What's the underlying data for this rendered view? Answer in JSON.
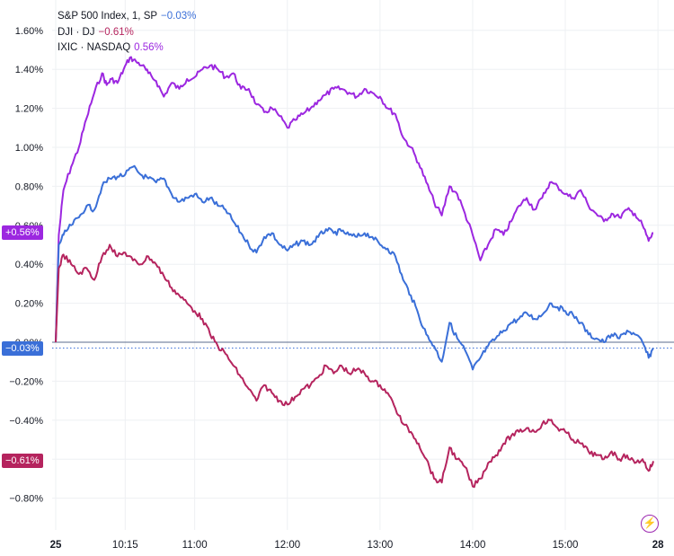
{
  "legend": {
    "sp": {
      "label": "S&P 500 Index, 1, SP",
      "value": "−0.03%"
    },
    "dj": {
      "label": "DJI · DJ",
      "value": "−0.61%"
    },
    "ixic": {
      "label": "IXIC · NASDAQ",
      "value": "0.56%"
    }
  },
  "badges": {
    "ixic": "+0.56%",
    "sp": "−0.03%",
    "dj": "−0.61%"
  },
  "colors": {
    "sp": "#3a6fd8",
    "dj": "#b5245e",
    "ixic": "#9c27e0",
    "grid": "#eef0f3",
    "text": "#131722"
  },
  "icons": {
    "logo": "lightning-icon"
  },
  "chart_data": {
    "type": "line",
    "y_unit": "%",
    "ylim": [
      -0.9,
      1.65
    ],
    "xlim": [
      "09:30",
      "15:57"
    ],
    "y_ticks": [
      "1.60%",
      "1.40%",
      "1.20%",
      "1.00%",
      "0.80%",
      "0.60%",
      "0.40%",
      "0.20%",
      "0.00%",
      "−0.20%",
      "−0.40%",
      "−0.60%",
      "−0.80%"
    ],
    "y_tick_values": [
      1.6,
      1.4,
      1.2,
      1.0,
      0.8,
      0.6,
      0.4,
      0.2,
      0.0,
      -0.2,
      -0.4,
      -0.6,
      -0.8
    ],
    "x_ticks": [
      "25",
      "10:15",
      "11:00",
      "12:00",
      "13:00",
      "14:00",
      "15:00",
      "28"
    ],
    "x_tick_times": [
      "09:30",
      "10:15",
      "11:00",
      "12:00",
      "13:00",
      "14:00",
      "15:00",
      "16:00"
    ],
    "grid": true,
    "series": [
      {
        "key": "ixic",
        "name": "IXIC · NASDAQ",
        "last": 0.56,
        "points": [
          [
            "09:30",
            0.0
          ],
          [
            "09:32",
            0.55
          ],
          [
            "09:35",
            0.78
          ],
          [
            "09:40",
            0.9
          ],
          [
            "09:45",
            1.0
          ],
          [
            "09:50",
            1.15
          ],
          [
            "09:55",
            1.28
          ],
          [
            "10:00",
            1.38
          ],
          [
            "10:03",
            1.32
          ],
          [
            "10:06",
            1.35
          ],
          [
            "10:10",
            1.33
          ],
          [
            "10:14",
            1.4
          ],
          [
            "10:18",
            1.46
          ],
          [
            "10:22",
            1.44
          ],
          [
            "10:26",
            1.42
          ],
          [
            "10:30",
            1.38
          ],
          [
            "10:35",
            1.34
          ],
          [
            "10:40",
            1.26
          ],
          [
            "10:45",
            1.33
          ],
          [
            "10:50",
            1.3
          ],
          [
            "10:55",
            1.35
          ],
          [
            "11:00",
            1.36
          ],
          [
            "11:05",
            1.4
          ],
          [
            "11:10",
            1.42
          ],
          [
            "11:15",
            1.4
          ],
          [
            "11:20",
            1.36
          ],
          [
            "11:25",
            1.38
          ],
          [
            "11:30",
            1.3
          ],
          [
            "11:35",
            1.3
          ],
          [
            "11:40",
            1.22
          ],
          [
            "11:45",
            1.18
          ],
          [
            "11:50",
            1.2
          ],
          [
            "11:55",
            1.16
          ],
          [
            "12:00",
            1.1
          ],
          [
            "12:05",
            1.14
          ],
          [
            "12:10",
            1.17
          ],
          [
            "12:15",
            1.2
          ],
          [
            "12:20",
            1.24
          ],
          [
            "12:25",
            1.27
          ],
          [
            "12:30",
            1.3
          ],
          [
            "12:35",
            1.3
          ],
          [
            "12:40",
            1.28
          ],
          [
            "12:45",
            1.26
          ],
          [
            "12:50",
            1.3
          ],
          [
            "12:55",
            1.28
          ],
          [
            "13:00",
            1.26
          ],
          [
            "13:05",
            1.2
          ],
          [
            "13:10",
            1.17
          ],
          [
            "13:15",
            1.05
          ],
          [
            "13:20",
            1.0
          ],
          [
            "13:25",
            0.92
          ],
          [
            "13:30",
            0.82
          ],
          [
            "13:35",
            0.72
          ],
          [
            "13:40",
            0.65
          ],
          [
            "13:45",
            0.8
          ],
          [
            "13:50",
            0.76
          ],
          [
            "13:55",
            0.66
          ],
          [
            "14:00",
            0.55
          ],
          [
            "14:05",
            0.42
          ],
          [
            "14:10",
            0.5
          ],
          [
            "14:15",
            0.58
          ],
          [
            "14:20",
            0.55
          ],
          [
            "14:25",
            0.62
          ],
          [
            "14:30",
            0.7
          ],
          [
            "14:35",
            0.74
          ],
          [
            "14:40",
            0.68
          ],
          [
            "14:45",
            0.74
          ],
          [
            "14:50",
            0.82
          ],
          [
            "14:55",
            0.8
          ],
          [
            "15:00",
            0.76
          ],
          [
            "15:05",
            0.74
          ],
          [
            "15:10",
            0.78
          ],
          [
            "15:15",
            0.7
          ],
          [
            "15:20",
            0.66
          ],
          [
            "15:25",
            0.62
          ],
          [
            "15:30",
            0.66
          ],
          [
            "15:35",
            0.64
          ],
          [
            "15:40",
            0.68
          ],
          [
            "15:45",
            0.66
          ],
          [
            "15:50",
            0.6
          ],
          [
            "15:54",
            0.52
          ],
          [
            "15:57",
            0.56
          ]
        ]
      },
      {
        "key": "sp",
        "name": "S&P 500 Index, 1, SP",
        "last": -0.03,
        "points": [
          [
            "09:30",
            0.0
          ],
          [
            "09:32",
            0.5
          ],
          [
            "09:35",
            0.55
          ],
          [
            "09:40",
            0.6
          ],
          [
            "09:45",
            0.64
          ],
          [
            "09:50",
            0.7
          ],
          [
            "09:55",
            0.68
          ],
          [
            "10:00",
            0.8
          ],
          [
            "10:05",
            0.84
          ],
          [
            "10:10",
            0.85
          ],
          [
            "10:15",
            0.86
          ],
          [
            "10:20",
            0.9
          ],
          [
            "10:25",
            0.86
          ],
          [
            "10:30",
            0.84
          ],
          [
            "10:35",
            0.82
          ],
          [
            "10:40",
            0.84
          ],
          [
            "10:45",
            0.76
          ],
          [
            "10:50",
            0.72
          ],
          [
            "10:55",
            0.74
          ],
          [
            "11:00",
            0.76
          ],
          [
            "11:05",
            0.72
          ],
          [
            "11:10",
            0.74
          ],
          [
            "11:15",
            0.7
          ],
          [
            "11:20",
            0.68
          ],
          [
            "11:25",
            0.62
          ],
          [
            "11:30",
            0.56
          ],
          [
            "11:35",
            0.5
          ],
          [
            "11:40",
            0.46
          ],
          [
            "11:45",
            0.54
          ],
          [
            "11:50",
            0.56
          ],
          [
            "11:55",
            0.5
          ],
          [
            "12:00",
            0.47
          ],
          [
            "12:05",
            0.5
          ],
          [
            "12:10",
            0.52
          ],
          [
            "12:15",
            0.5
          ],
          [
            "12:20",
            0.54
          ],
          [
            "12:25",
            0.58
          ],
          [
            "12:30",
            0.56
          ],
          [
            "12:35",
            0.57
          ],
          [
            "12:40",
            0.55
          ],
          [
            "12:45",
            0.54
          ],
          [
            "12:50",
            0.56
          ],
          [
            "12:55",
            0.54
          ],
          [
            "13:00",
            0.5
          ],
          [
            "13:05",
            0.48
          ],
          [
            "13:10",
            0.44
          ],
          [
            "13:15",
            0.32
          ],
          [
            "13:20",
            0.24
          ],
          [
            "13:25",
            0.14
          ],
          [
            "13:30",
            0.04
          ],
          [
            "13:35",
            -0.02
          ],
          [
            "13:40",
            -0.1
          ],
          [
            "13:45",
            0.1
          ],
          [
            "13:50",
            0.02
          ],
          [
            "13:55",
            -0.04
          ],
          [
            "14:00",
            -0.14
          ],
          [
            "14:05",
            -0.08
          ],
          [
            "14:10",
            -0.02
          ],
          [
            "14:15",
            0.02
          ],
          [
            "14:20",
            0.06
          ],
          [
            "14:25",
            0.1
          ],
          [
            "14:30",
            0.12
          ],
          [
            "14:35",
            0.15
          ],
          [
            "14:40",
            0.12
          ],
          [
            "14:45",
            0.14
          ],
          [
            "14:50",
            0.2
          ],
          [
            "14:55",
            0.18
          ],
          [
            "15:00",
            0.16
          ],
          [
            "15:05",
            0.14
          ],
          [
            "15:10",
            0.1
          ],
          [
            "15:15",
            0.04
          ],
          [
            "15:20",
            0.02
          ],
          [
            "15:25",
            0.0
          ],
          [
            "15:30",
            0.04
          ],
          [
            "15:35",
            0.02
          ],
          [
            "15:40",
            0.06
          ],
          [
            "15:45",
            0.04
          ],
          [
            "15:50",
            0.0
          ],
          [
            "15:54",
            -0.08
          ],
          [
            "15:57",
            -0.03
          ]
        ]
      },
      {
        "key": "dj",
        "name": "DJI · DJ",
        "last": -0.61,
        "points": [
          [
            "09:30",
            0.0
          ],
          [
            "09:32",
            0.38
          ],
          [
            "09:35",
            0.45
          ],
          [
            "09:40",
            0.4
          ],
          [
            "09:45",
            0.35
          ],
          [
            "09:50",
            0.38
          ],
          [
            "09:55",
            0.32
          ],
          [
            "10:00",
            0.44
          ],
          [
            "10:05",
            0.5
          ],
          [
            "10:10",
            0.44
          ],
          [
            "10:15",
            0.46
          ],
          [
            "10:20",
            0.42
          ],
          [
            "10:25",
            0.4
          ],
          [
            "10:30",
            0.44
          ],
          [
            "10:35",
            0.4
          ],
          [
            "10:40",
            0.34
          ],
          [
            "10:45",
            0.28
          ],
          [
            "10:50",
            0.24
          ],
          [
            "10:55",
            0.2
          ],
          [
            "11:00",
            0.16
          ],
          [
            "11:05",
            0.12
          ],
          [
            "11:10",
            0.04
          ],
          [
            "11:15",
            -0.02
          ],
          [
            "11:20",
            -0.06
          ],
          [
            "11:25",
            -0.12
          ],
          [
            "11:30",
            -0.18
          ],
          [
            "11:35",
            -0.24
          ],
          [
            "11:40",
            -0.3
          ],
          [
            "11:45",
            -0.22
          ],
          [
            "11:50",
            -0.26
          ],
          [
            "11:55",
            -0.3
          ],
          [
            "12:00",
            -0.32
          ],
          [
            "12:05",
            -0.28
          ],
          [
            "12:10",
            -0.24
          ],
          [
            "12:15",
            -0.22
          ],
          [
            "12:20",
            -0.18
          ],
          [
            "12:25",
            -0.12
          ],
          [
            "12:30",
            -0.16
          ],
          [
            "12:35",
            -0.12
          ],
          [
            "12:40",
            -0.16
          ],
          [
            "12:45",
            -0.14
          ],
          [
            "12:50",
            -0.16
          ],
          [
            "12:55",
            -0.2
          ],
          [
            "13:00",
            -0.22
          ],
          [
            "13:05",
            -0.26
          ],
          [
            "13:10",
            -0.34
          ],
          [
            "13:15",
            -0.42
          ],
          [
            "13:20",
            -0.46
          ],
          [
            "13:25",
            -0.52
          ],
          [
            "13:30",
            -0.6
          ],
          [
            "13:35",
            -0.7
          ],
          [
            "13:40",
            -0.72
          ],
          [
            "13:45",
            -0.54
          ],
          [
            "13:50",
            -0.6
          ],
          [
            "13:55",
            -0.64
          ],
          [
            "14:00",
            -0.74
          ],
          [
            "14:05",
            -0.7
          ],
          [
            "14:10",
            -0.62
          ],
          [
            "14:15",
            -0.58
          ],
          [
            "14:20",
            -0.52
          ],
          [
            "14:25",
            -0.48
          ],
          [
            "14:30",
            -0.46
          ],
          [
            "14:35",
            -0.44
          ],
          [
            "14:40",
            -0.46
          ],
          [
            "14:45",
            -0.42
          ],
          [
            "14:50",
            -0.4
          ],
          [
            "14:55",
            -0.44
          ],
          [
            "15:00",
            -0.46
          ],
          [
            "15:05",
            -0.5
          ],
          [
            "15:10",
            -0.52
          ],
          [
            "15:15",
            -0.56
          ],
          [
            "15:20",
            -0.58
          ],
          [
            "15:25",
            -0.6
          ],
          [
            "15:30",
            -0.56
          ],
          [
            "15:35",
            -0.6
          ],
          [
            "15:40",
            -0.58
          ],
          [
            "15:45",
            -0.62
          ],
          [
            "15:50",
            -0.6
          ],
          [
            "15:54",
            -0.66
          ],
          [
            "15:57",
            -0.61
          ]
        ]
      }
    ]
  }
}
